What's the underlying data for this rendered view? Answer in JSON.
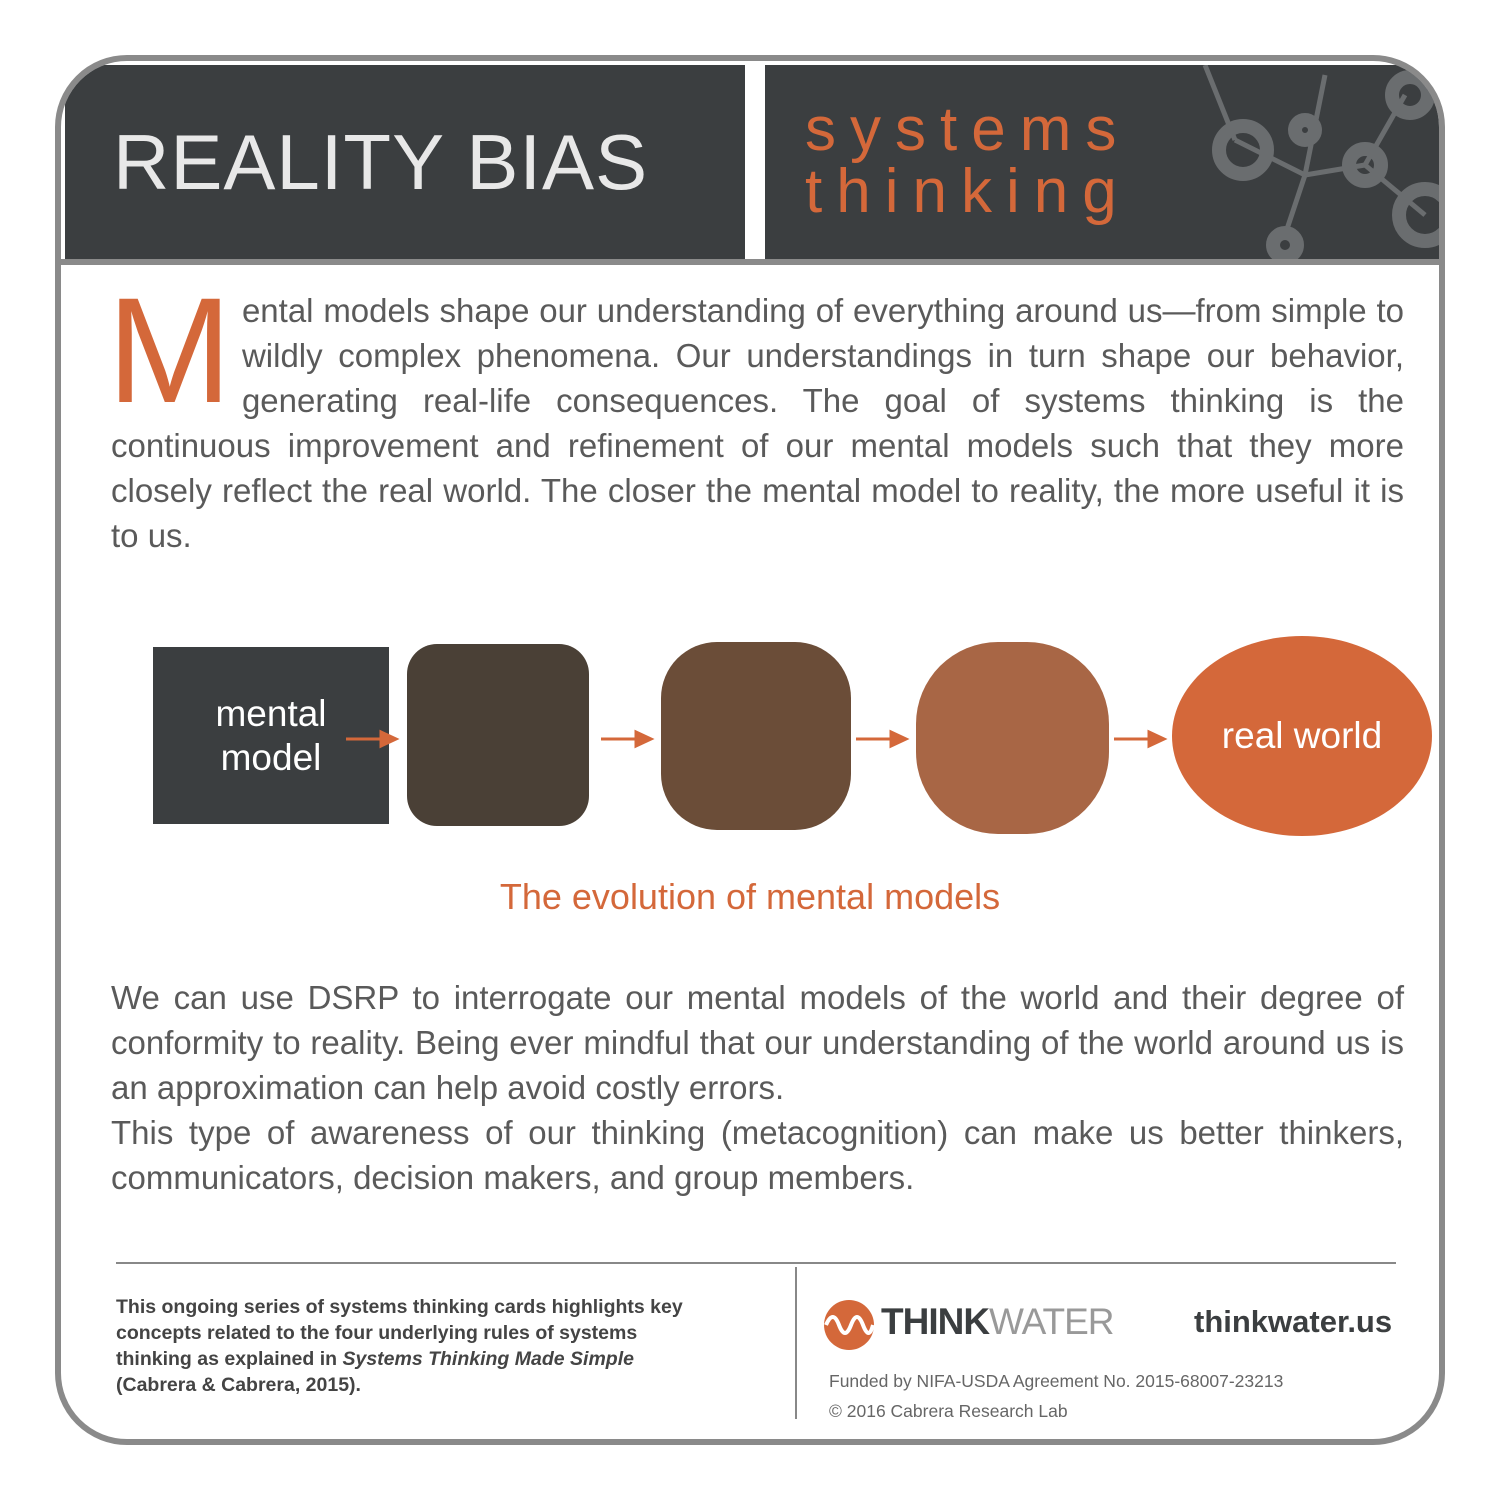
{
  "header": {
    "title": "REALITY BIAS",
    "subtitle": [
      "systems",
      "thinking"
    ]
  },
  "intro": {
    "dropcap": "M",
    "text": "ental models shape our understanding of everything around us—from simple to wildly complex phenomena. Our understandings in turn shape our behavior, generating real-life consequences. The goal of systems thinking is the continuous improvement and refinement of our mental models such that they more closely reflect the real world. The closer the mental model to reality, the more useful it is to us."
  },
  "diagram": {
    "nodes": [
      "mental model",
      "",
      "",
      "",
      "real world"
    ],
    "caption": "The evolution of mental models"
  },
  "body": [
    "We can use DSRP to interrogate our mental models of the world and their degree of conformity to reality. Being ever mindful that our understanding of the world around us is an approximation can help avoid costly errors.",
    "This type of awareness of our thinking (metacognition) can make us better thinkers, communicators, decision makers, and group members."
  ],
  "footer": {
    "note": [
      "This ongoing series of systems thinking cards highlights key concepts related to the four underlying rules of systems thinking as explained in ",
      "Systems Thinking Made Simple",
      " (Cabrera & Cabrera, 2015)."
    ],
    "brand": [
      "THINK",
      "WATER"
    ],
    "url": "thinkwater.us",
    "funding": "Funded by NIFA-USDA Agreement No. 2015-68007-23213",
    "copyright": "© 2016 Cabrera Research Lab"
  }
}
